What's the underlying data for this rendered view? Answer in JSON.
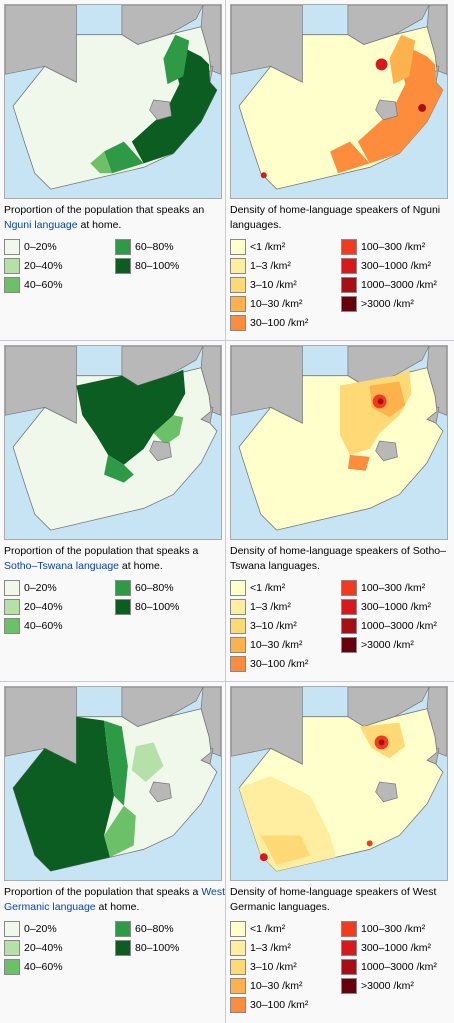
{
  "panels": [
    {
      "left": {
        "caption_pre": "Proportion of the population that speaks an ",
        "caption_link": "Nguni language",
        "caption_post": " at home.",
        "legend": [
          "0–20%",
          "20–40%",
          "40–60%",
          "60–80%",
          "80–100%"
        ]
      },
      "right": {
        "caption": "Density of home-language speakers of Nguni languages.",
        "legend": [
          "<1 /km²",
          "1–3 /km²",
          "3–10 /km²",
          "10–30 /km²",
          "30–100 /km²",
          "100–300 /km²",
          "300–1000 /km²",
          "1000–3000 /km²",
          ">3000 /km²"
        ]
      }
    },
    {
      "left": {
        "caption_pre": "Proportion of the population that speaks a ",
        "caption_link": "Sotho–Tswana language",
        "caption_post": " at home.",
        "legend": [
          "0–20%",
          "20–40%",
          "40–60%",
          "60–80%",
          "80–100%"
        ]
      },
      "right": {
        "caption": "Density of home-language speakers of Sotho–Tswana languages.",
        "legend": [
          "<1 /km²",
          "1–3 /km²",
          "3–10 /km²",
          "10–30 /km²",
          "30–100 /km²",
          "100–300 /km²",
          "300–1000 /km²",
          "1000–3000 /km²",
          ">3000 /km²"
        ]
      }
    },
    {
      "left": {
        "caption_pre": "Proportion of the population that speaks a ",
        "caption_link": "West Germanic language",
        "caption_post": " at home.",
        "legend": [
          "0–20%",
          "20–40%",
          "40–60%",
          "60–80%",
          "80–100%"
        ]
      },
      "right": {
        "caption": "Density of home-language speakers of West Germanic languages.",
        "legend": [
          "<1 /km²",
          "1–3 /km²",
          "3–10 /km²",
          "10–30 /km²",
          "30–100 /km²",
          "100–300 /km²",
          "300–1000 /km²",
          "1000–3000 /km²",
          ">3000 /km²"
        ]
      }
    }
  ],
  "colors": {
    "proportion_scale": [
      "#eff8ea",
      "#b5e1a8",
      "#6cc068",
      "#2f9a45",
      "#0b5d22"
    ],
    "density_scale": [
      "#ffffcc",
      "#ffeda0",
      "#fed976",
      "#feb24c",
      "#fd8d3c",
      "#f03b20",
      "#d7191c",
      "#a50f15",
      "#67000d"
    ],
    "sea": "#c7e4f5",
    "neighbour_land": "#b8b8b8"
  }
}
